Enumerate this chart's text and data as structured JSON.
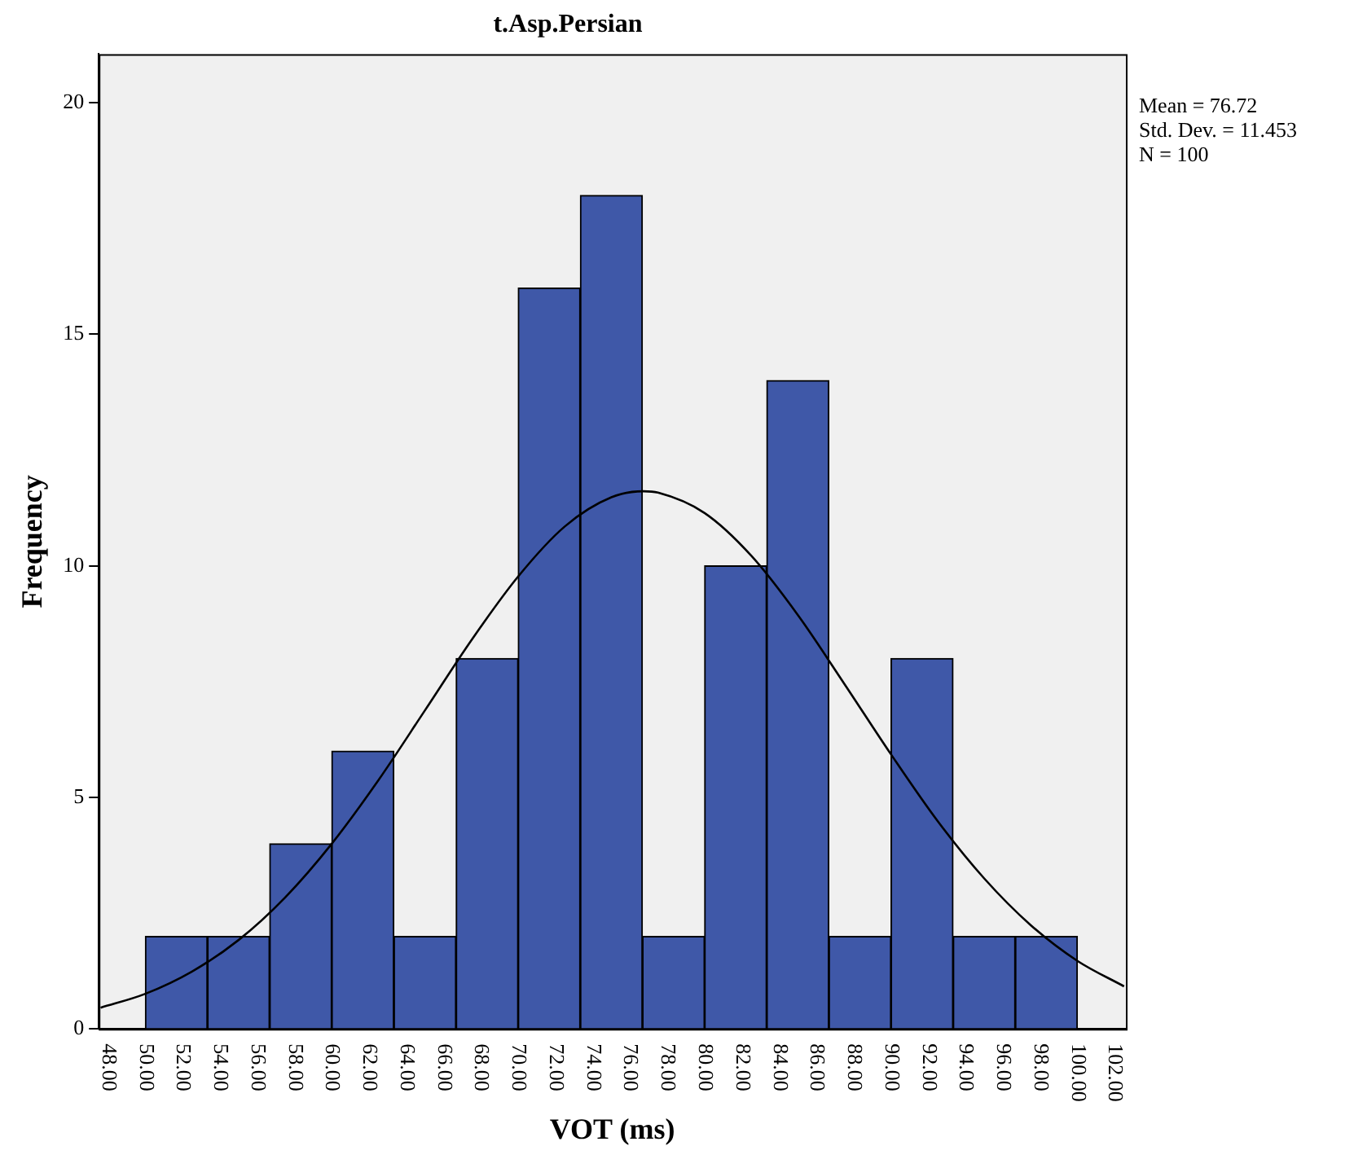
{
  "chart_data": {
    "type": "histogram",
    "title": "t.Asp.Persian",
    "xlabel": "VOT (ms)",
    "ylabel": "Frequency",
    "annotations": [
      "Mean = 76.72",
      "Std. Dev. = 11.453",
      "N = 100"
    ],
    "series": [
      {
        "color": "#3f58a8",
        "bins": [
          50,
          53.33,
          56.67,
          60,
          63.33,
          66.67,
          70,
          73.33,
          76.67,
          80,
          83.33,
          86.67,
          90,
          93.33,
          96.67,
          100
        ],
        "values": [
          2,
          2,
          4,
          6,
          2,
          8,
          16,
          18,
          2,
          10,
          14,
          2,
          8,
          2,
          2
        ]
      },
      {
        "type": "line",
        "color": "#000000",
        "x": [
          47.6,
          50,
          52.5,
          55,
          57.5,
          60,
          62.5,
          65,
          67.5,
          70,
          72.5,
          75,
          76.72,
          77.5,
          80,
          82.5,
          85,
          87.5,
          90,
          92.5,
          95,
          97.5,
          100,
          102.5
        ],
        "values": [
          0.46,
          0.76,
          1.24,
          1.92,
          2.84,
          4.0,
          5.37,
          6.88,
          8.4,
          9.77,
          10.85,
          11.48,
          11.61,
          11.58,
          11.14,
          10.22,
          8.94,
          7.45,
          5.93,
          4.49,
          3.25,
          2.24,
          1.47,
          0.92
        ]
      }
    ],
    "xlim": [
      47.5,
      102.6
    ],
    "ylim": [
      0,
      21.05
    ],
    "xticks": [
      {
        "value": 48,
        "label": "48.00"
      },
      {
        "value": 50,
        "label": "50.00"
      },
      {
        "value": 52,
        "label": "52.00"
      },
      {
        "value": 54,
        "label": "54.00"
      },
      {
        "value": 56,
        "label": "56.00"
      },
      {
        "value": 58,
        "label": "58.00"
      },
      {
        "value": 60,
        "label": "60.00"
      },
      {
        "value": 62,
        "label": "62.00"
      },
      {
        "value": 64,
        "label": "64.00"
      },
      {
        "value": 66,
        "label": "66.00"
      },
      {
        "value": 68,
        "label": "68.00"
      },
      {
        "value": 70,
        "label": "70.00"
      },
      {
        "value": 72,
        "label": "72.00"
      },
      {
        "value": 74,
        "label": "74.00"
      },
      {
        "value": 76,
        "label": "76.00"
      },
      {
        "value": 78,
        "label": "78.00"
      },
      {
        "value": 80,
        "label": "80.00"
      },
      {
        "value": 82,
        "label": "82.00"
      },
      {
        "value": 84,
        "label": "84.00"
      },
      {
        "value": 86,
        "label": "86.00"
      },
      {
        "value": 88,
        "label": "88.00"
      },
      {
        "value": 90,
        "label": "90.00"
      },
      {
        "value": 92,
        "label": "92.00"
      },
      {
        "value": 94,
        "label": "94.00"
      },
      {
        "value": 96,
        "label": "96.00"
      },
      {
        "value": 98,
        "label": "98.00"
      },
      {
        "value": 100,
        "label": "100.00"
      },
      {
        "value": 102,
        "label": "102.00"
      }
    ],
    "yticks": [
      0,
      5,
      10,
      15,
      20
    ]
  }
}
